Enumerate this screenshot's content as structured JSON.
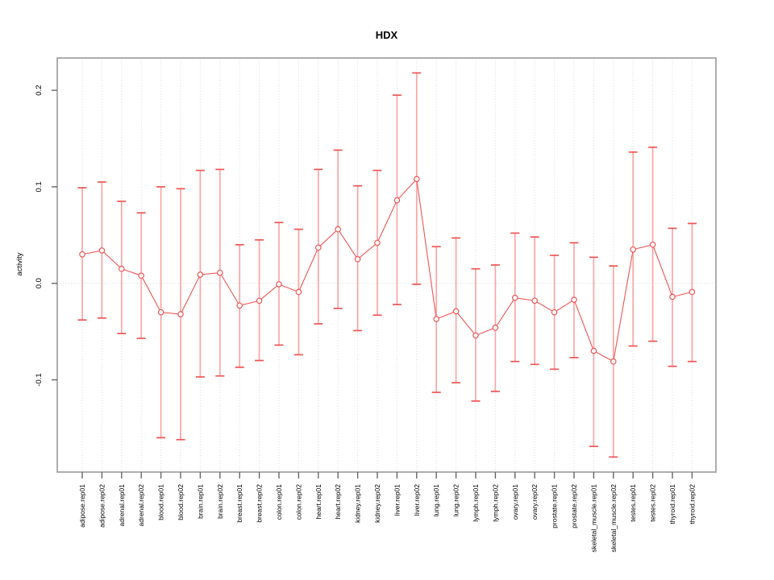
{
  "figure": {
    "title": "HDX",
    "y_axis_title": "activity"
  },
  "chart_data": {
    "type": "line",
    "title": "HDX",
    "xlabel": "",
    "ylabel": "activity",
    "legend": "none",
    "grid": "vertical dotted gridline per category, dotted horizontal line at y=0",
    "marker": "open-circle",
    "error_bars": true,
    "ylim": [
      -0.196,
      0.235
    ],
    "yticks": [
      0.2,
      0.1,
      0.0,
      -0.1
    ],
    "categories": [
      "adipose.rep01",
      "adipose.rep02",
      "adrenal.rep01",
      "adrenal.rep02",
      "blood.rep01",
      "blood.rep02",
      "brain.rep01",
      "brain.rep02",
      "breast.rep01",
      "breast.rep02",
      "colon.rep01",
      "colon.rep02",
      "heart.rep01",
      "heart.rep02",
      "kidney.rep01",
      "kidney.rep02",
      "liver.rep01",
      "liver.rep02",
      "lung.rep01",
      "lung.rep02",
      "lymph.rep01",
      "lymph.rep02",
      "ovary.rep01",
      "ovary.rep02",
      "prostate.rep01",
      "prostate.rep02",
      "skeletal_muscle.rep01",
      "skeletal_muscle.rep02",
      "testes.rep01",
      "testes.rep02",
      "thyroid.rep01",
      "thyroid.rep02"
    ],
    "series": [
      {
        "name": "activity",
        "values": [
          0.03,
          0.034,
          0.015,
          0.008,
          -0.03,
          -0.032,
          0.009,
          0.011,
          -0.023,
          -0.018,
          -0.001,
          -0.009,
          0.037,
          0.056,
          0.025,
          0.042,
          0.086,
          0.108,
          -0.037,
          -0.029,
          -0.054,
          -0.046,
          -0.015,
          -0.018,
          -0.03,
          -0.017,
          -0.07,
          -0.081,
          0.035,
          0.04,
          -0.014,
          -0.009
        ],
        "upper": [
          0.099,
          0.105,
          0.085,
          0.073,
          0.1,
          0.098,
          0.117,
          0.118,
          0.04,
          0.045,
          0.063,
          0.056,
          0.118,
          0.138,
          0.101,
          0.117,
          0.195,
          0.218,
          0.038,
          0.047,
          0.015,
          0.019,
          0.052,
          0.048,
          0.029,
          0.042,
          0.027,
          0.018,
          0.136,
          0.141,
          0.057,
          0.062
        ],
        "lower": [
          -0.038,
          -0.036,
          -0.052,
          -0.057,
          -0.16,
          -0.162,
          -0.097,
          -0.096,
          -0.087,
          -0.08,
          -0.064,
          -0.074,
          -0.042,
          -0.026,
          -0.049,
          -0.033,
          -0.022,
          -0.001,
          -0.113,
          -0.103,
          -0.122,
          -0.112,
          -0.081,
          -0.084,
          -0.089,
          -0.077,
          -0.169,
          -0.18,
          -0.065,
          -0.06,
          -0.086,
          -0.081
        ]
      }
    ],
    "colors": {
      "series": "#f05555",
      "error_bar_line": "#f9a6a6",
      "grid": "#d9d9d9",
      "frame": "#9a9a9a",
      "tick": "#666666",
      "text": "#000000",
      "background": "#ffffff"
    }
  }
}
